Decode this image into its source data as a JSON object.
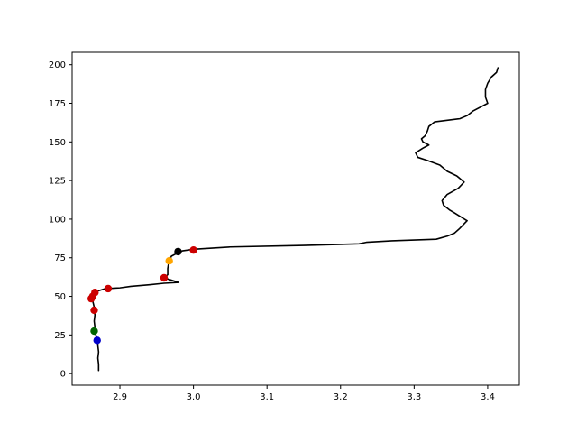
{
  "chart_data": {
    "type": "line",
    "title": "",
    "xlabel": "",
    "ylabel": "",
    "xlim": [
      2.835,
      3.443
    ],
    "ylim": [
      -7.5,
      208.0
    ],
    "grid": false,
    "legend": "none",
    "x_ticks": [
      2.9,
      3.0,
      3.1,
      3.2,
      3.3,
      3.4
    ],
    "y_ticks": [
      0,
      25,
      50,
      75,
      100,
      125,
      150,
      175,
      200
    ],
    "x_tick_labels": [
      "2.9",
      "3.0",
      "3.1",
      "3.2",
      "3.3",
      "3.4"
    ],
    "y_tick_labels": [
      "0",
      "25",
      "50",
      "75",
      "100",
      "125",
      "150",
      "175",
      "200"
    ],
    "series": [
      {
        "color": "#000000",
        "points": [
          [
            2.871,
            2
          ],
          [
            2.871,
            6
          ],
          [
            2.87,
            10
          ],
          [
            2.871,
            14
          ],
          [
            2.87,
            18
          ],
          [
            2.87,
            21
          ],
          [
            2.868,
            24
          ],
          [
            2.866,
            27
          ],
          [
            2.866,
            30
          ],
          [
            2.865,
            34
          ],
          [
            2.866,
            38
          ],
          [
            2.865,
            41
          ],
          [
            2.865,
            43
          ],
          [
            2.864,
            45
          ],
          [
            2.863,
            47
          ],
          [
            2.86,
            48
          ],
          [
            2.866,
            50
          ],
          [
            2.867,
            53
          ],
          [
            2.88,
            55
          ],
          [
            2.9,
            55.5
          ],
          [
            2.915,
            56.5
          ],
          [
            2.94,
            57.5
          ],
          [
            2.96,
            58.5
          ],
          [
            2.98,
            59
          ],
          [
            2.97,
            60.5
          ],
          [
            2.96,
            62
          ],
          [
            2.965,
            64
          ],
          [
            2.965,
            68
          ],
          [
            2.966,
            71
          ],
          [
            2.967,
            73
          ],
          [
            2.97,
            76
          ],
          [
            2.978,
            78
          ],
          [
            2.985,
            79.5
          ],
          [
            3.0,
            80.5
          ],
          [
            3.05,
            82
          ],
          [
            3.15,
            83
          ],
          [
            3.225,
            84
          ],
          [
            3.235,
            85
          ],
          [
            3.27,
            86
          ],
          [
            3.33,
            87
          ],
          [
            3.345,
            89
          ],
          [
            3.355,
            91
          ],
          [
            3.362,
            94
          ],
          [
            3.368,
            97
          ],
          [
            3.372,
            99
          ],
          [
            3.365,
            101
          ],
          [
            3.355,
            104
          ],
          [
            3.348,
            106
          ],
          [
            3.34,
            109
          ],
          [
            3.338,
            112
          ],
          [
            3.345,
            116
          ],
          [
            3.36,
            120
          ],
          [
            3.368,
            124
          ],
          [
            3.358,
            128
          ],
          [
            3.345,
            131
          ],
          [
            3.335,
            135
          ],
          [
            3.318,
            138
          ],
          [
            3.305,
            140
          ],
          [
            3.302,
            143
          ],
          [
            3.312,
            146
          ],
          [
            3.32,
            148
          ],
          [
            3.312,
            150
          ],
          [
            3.31,
            152
          ],
          [
            3.315,
            154
          ],
          [
            3.318,
            157
          ],
          [
            3.32,
            160
          ],
          [
            3.328,
            163
          ],
          [
            3.362,
            165
          ],
          [
            3.372,
            167
          ],
          [
            3.38,
            170
          ],
          [
            3.4,
            175
          ],
          [
            3.397,
            179
          ],
          [
            3.397,
            184
          ],
          [
            3.4,
            188
          ],
          [
            3.405,
            192
          ],
          [
            3.412,
            195
          ],
          [
            3.414,
            198
          ]
        ]
      }
    ],
    "markers": [
      {
        "x": 2.869,
        "y": 21.5,
        "color": "#0000cc"
      },
      {
        "x": 2.865,
        "y": 27.5,
        "color": "#006400"
      },
      {
        "x": 2.865,
        "y": 41,
        "color": "#cc0000"
      },
      {
        "x": 2.861,
        "y": 48.5,
        "color": "#cc0000"
      },
      {
        "x": 2.863,
        "y": 50,
        "color": "#cc0000"
      },
      {
        "x": 2.866,
        "y": 52.5,
        "color": "#cc0000"
      },
      {
        "x": 2.884,
        "y": 55,
        "color": "#cc0000"
      },
      {
        "x": 2.96,
        "y": 62,
        "color": "#cc0000"
      },
      {
        "x": 2.967,
        "y": 73,
        "color": "#ffa500"
      },
      {
        "x": 2.979,
        "y": 79,
        "color": "#000000"
      },
      {
        "x": 3.0,
        "y": 80,
        "color": "#cc0000"
      }
    ]
  }
}
